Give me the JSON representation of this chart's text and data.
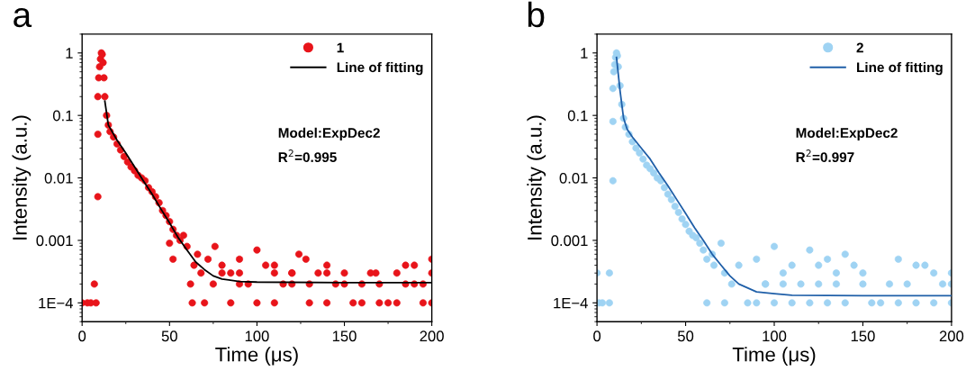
{
  "chart_data": [
    {
      "type": "scatter",
      "title": "a",
      "xlabel": "Time (μs)",
      "ylabel": "Intensity (a.u.)",
      "log": "y",
      "xlim": [
        0,
        200
      ],
      "ylim": [
        5e-05,
        2
      ],
      "xticks": [
        0,
        50,
        100,
        150,
        200
      ],
      "yticks": [
        {
          "value": 0.0001,
          "label": "1E−4"
        },
        0.001,
        0.01,
        0.1,
        1
      ],
      "grid": false,
      "legend": "top right",
      "annotations": [
        "Model:ExpDec2",
        "R$^{2}$=0.995"
      ],
      "series": [
        {
          "name": "1",
          "marker": "circle",
          "color": "#e8141a",
          "x": [
            0,
            3,
            5,
            7,
            8,
            9,
            9,
            9,
            9.5,
            10,
            10.5,
            11,
            11.5,
            12,
            12.5,
            13,
            14,
            15,
            16,
            18,
            20,
            22,
            24,
            26,
            28,
            30,
            32,
            34,
            36,
            38,
            40,
            42,
            44,
            46,
            48,
            50,
            50,
            52,
            52,
            54,
            56,
            58,
            60,
            62,
            63,
            64,
            66,
            68,
            70,
            72,
            76,
            80,
            85,
            90,
            95,
            100,
            100,
            105,
            110,
            115,
            120,
            124,
            128,
            130,
            135,
            140,
            145,
            150,
            155,
            160,
            168,
            175,
            180,
            185,
            190,
            195,
            200,
            200,
            200,
            75,
            85,
            90,
            110,
            120,
            130,
            140,
            150,
            160,
            170,
            180,
            190,
            80,
            90,
            110,
            120,
            140,
            165,
            170,
            185,
            195
          ],
          "values": [
            0.0001,
            0.0001,
            0.0001,
            0.0002,
            0.0001,
            0.005,
            0.05,
            0.2,
            0.4,
            0.6,
            0.8,
            1,
            0.95,
            0.7,
            0.4,
            0.2,
            0.1,
            0.07,
            0.055,
            0.045,
            0.035,
            0.028,
            0.022,
            0.018,
            0.015,
            0.013,
            0.011,
            0.01,
            0.009,
            0.007,
            0.006,
            0.005,
            0.004,
            0.003,
            0.0025,
            0.002,
            0.0009,
            0.0015,
            0.0005,
            0.0012,
            0.001,
            0.0012,
            0.0008,
            0.0002,
            0.0001,
            0.0004,
            0.0006,
            0.0003,
            0.0001,
            0.0005,
            0.0008,
            0.0004,
            0.0003,
            0.0005,
            0.0002,
            0.0007,
            0.0001,
            0.0004,
            0.0003,
            0.0002,
            0.0003,
            0.0006,
            0.0005,
            0.0001,
            0.0003,
            0.0004,
            0.0002,
            0.0003,
            0.0001,
            0.0002,
            0.0003,
            0.0001,
            0.0003,
            0.0004,
            0.0004,
            0.0002,
            0.0005,
            0.0001,
            0.0003,
            0.0002,
            0.0001,
            0.0002,
            0.0001,
            0.0002,
            0.0002,
            0.0001,
            0.0002,
            0.0001,
            0.0002,
            0.0001,
            0.0002,
            0.0003,
            0.0003,
            0.0004,
            0.0003,
            0.0003,
            0.0003,
            0.0001,
            0.0002,
            0.0001
          ]
        },
        {
          "name": "Line of fitting",
          "type": "line",
          "color": "#000000",
          "x": [
            13,
            15,
            20,
            25,
            30,
            35,
            40,
            45,
            50,
            55,
            60,
            65,
            70,
            75,
            80,
            90,
            100,
            150,
            200
          ],
          "values": [
            0.17,
            0.07,
            0.04,
            0.025,
            0.015,
            0.009,
            0.0055,
            0.0032,
            0.0019,
            0.0011,
            0.0007,
            0.00045,
            0.00034,
            0.00027,
            0.00024,
            0.00022,
            0.000215,
            0.00021,
            0.00021
          ]
        }
      ]
    },
    {
      "type": "scatter",
      "title": "b",
      "xlabel": "Time (μs)",
      "ylabel": "Intensity (a.u.)",
      "log": "y",
      "xlim": [
        0,
        200
      ],
      "ylim": [
        5e-05,
        2
      ],
      "xticks": [
        0,
        50,
        100,
        150,
        200
      ],
      "yticks": [
        {
          "value": 0.0001,
          "label": "1E−4"
        },
        0.001,
        0.01,
        0.1,
        1
      ],
      "grid": false,
      "legend": "top right",
      "annotations": [
        "Model:ExpDec2",
        "R$^{2}$=0.997"
      ],
      "series": [
        {
          "name": "2",
          "marker": "circle",
          "color": "#9fd3f3",
          "x": [
            0,
            1,
            3,
            7,
            7,
            9,
            9,
            9,
            9.5,
            10,
            10.5,
            11,
            11.5,
            12,
            13,
            14,
            15,
            16,
            18,
            20,
            22,
            24,
            26,
            28,
            30,
            32,
            34,
            36,
            38,
            40,
            42,
            44,
            46,
            48,
            50,
            52,
            54,
            56,
            58,
            60,
            62,
            65,
            66,
            70,
            72,
            62,
            72,
            76,
            80,
            85,
            90,
            95,
            100,
            105,
            110,
            115,
            120,
            125,
            130,
            135,
            140,
            145,
            150,
            155,
            170,
            180,
            185,
            190,
            200,
            200,
            200,
            90,
            100,
            110,
            120,
            130,
            140,
            160,
            170,
            180,
            190,
            95,
            105,
            125,
            135,
            150,
            165,
            175,
            195
          ],
          "values": [
            0.0003,
            0.0001,
            0.0001,
            0.0001,
            0.0003,
            0.009,
            0.08,
            0.27,
            0.5,
            0.65,
            0.85,
            1,
            0.9,
            0.6,
            0.3,
            0.15,
            0.09,
            0.065,
            0.05,
            0.038,
            0.03,
            0.025,
            0.02,
            0.016,
            0.014,
            0.012,
            0.01,
            0.009,
            0.007,
            0.0055,
            0.0045,
            0.0035,
            0.0028,
            0.0022,
            0.0018,
            0.0014,
            0.0012,
            0.0011,
            0.0009,
            0.0007,
            0.0005,
            0.0006,
            0.0004,
            0.0009,
            0.0003,
            0.0001,
            0.0001,
            0.0002,
            0.0004,
            0.0001,
            0.0005,
            0.0002,
            0.0008,
            0.0003,
            0.0004,
            0.0002,
            0.0007,
            0.0004,
            0.0005,
            0.0003,
            0.0006,
            0.0004,
            0.0003,
            0.0001,
            0.0005,
            0.0004,
            0.0004,
            0.0003,
            0.0003,
            0.0002,
            0.0001,
            0.0001,
            0.0001,
            0.0001,
            0.0001,
            0.0001,
            0.0001,
            0.0001,
            0.0001,
            0.0001,
            0.0001,
            0.0002,
            0.0002,
            0.0002,
            0.0002,
            0.0002,
            0.0002,
            0.0002,
            0.0002
          ]
        },
        {
          "name": "Line of fitting",
          "type": "line",
          "color": "#1f5fa8",
          "x": [
            11,
            13,
            15,
            17,
            20,
            25,
            30,
            35,
            40,
            45,
            50,
            55,
            60,
            65,
            70,
            75,
            80,
            90,
            100,
            110,
            150,
            200
          ],
          "values": [
            0.85,
            0.25,
            0.09,
            0.06,
            0.045,
            0.03,
            0.02,
            0.012,
            0.0075,
            0.0045,
            0.0027,
            0.0016,
            0.001,
            0.0006,
            0.0004,
            0.00027,
            0.0002,
            0.00015,
            0.00014,
            0.000132,
            0.00013,
            0.00013
          ]
        }
      ]
    }
  ]
}
